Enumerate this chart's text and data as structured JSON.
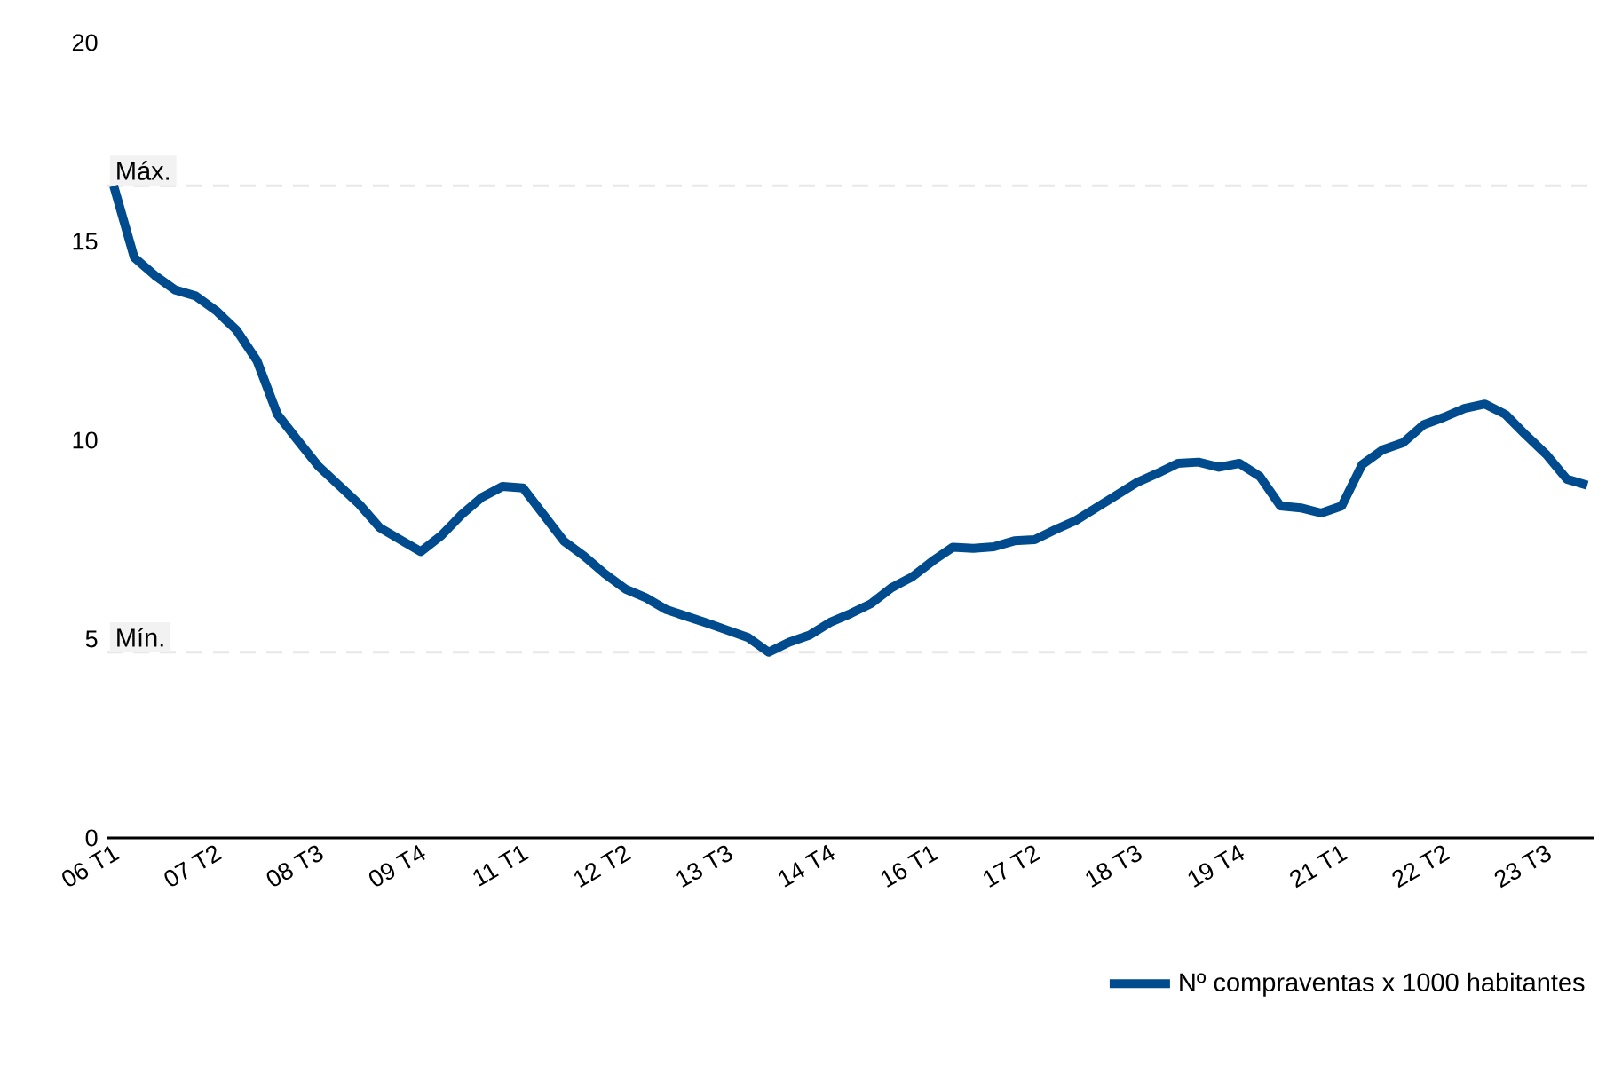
{
  "chart_data": {
    "type": "line",
    "categories": [
      "06 T1",
      null,
      null,
      null,
      null,
      "07 T2",
      null,
      null,
      null,
      null,
      "08 T3",
      null,
      null,
      null,
      null,
      "09 T4",
      null,
      null,
      null,
      null,
      "11 T1",
      null,
      null,
      null,
      null,
      "12 T2",
      null,
      null,
      null,
      null,
      "13 T3",
      null,
      null,
      null,
      null,
      "14 T4",
      null,
      null,
      null,
      null,
      "16 T1",
      null,
      null,
      null,
      null,
      "17 T2",
      null,
      null,
      null,
      null,
      "18 T3",
      null,
      null,
      null,
      null,
      "19 T4",
      null,
      null,
      null,
      null,
      "21 T1",
      null,
      null,
      null,
      null,
      "22 T2",
      null,
      null,
      null,
      null,
      "23 T3",
      null,
      null
    ],
    "series": [
      {
        "name": "Nº compraventas x 1000 habitantes",
        "color": "#004b8d",
        "values": [
          16.4,
          14.6,
          14.15,
          13.78,
          13.63,
          13.26,
          12.77,
          12.0,
          10.65,
          9.99,
          9.35,
          8.87,
          8.39,
          7.8,
          7.5,
          7.2,
          7.6,
          8.13,
          8.57,
          8.84,
          8.8,
          8.13,
          7.46,
          7.08,
          6.64,
          6.26,
          6.04,
          5.74,
          5.57,
          5.4,
          5.22,
          5.04,
          4.67,
          4.92,
          5.1,
          5.42,
          5.64,
          5.89,
          6.29,
          6.56,
          6.96,
          7.31,
          7.28,
          7.32,
          7.47,
          7.5,
          7.75,
          7.98,
          8.3,
          8.62,
          8.94,
          9.17,
          9.42,
          9.45,
          9.32,
          9.42,
          9.09,
          8.35,
          8.3,
          8.17,
          8.35,
          9.39,
          9.76,
          9.94,
          10.39,
          10.58,
          10.8,
          10.91,
          10.65,
          10.13,
          9.64,
          9.02,
          8.87
        ]
      }
    ],
    "ylim": [
      0,
      20
    ],
    "yticks": [
      0,
      5,
      10,
      15,
      20
    ],
    "ref_lines": [
      {
        "axis": "y",
        "value": 16.4,
        "label": "Máx.",
        "color": "#e8e8e8",
        "line_style": "dashed"
      },
      {
        "axis": "y",
        "value": 4.67,
        "label": "Mín.",
        "color": "#e8e8e8",
        "line_style": "dashed"
      }
    ],
    "grid": false,
    "legend": "bottom right",
    "marker": "none",
    "line_style": "solid"
  }
}
